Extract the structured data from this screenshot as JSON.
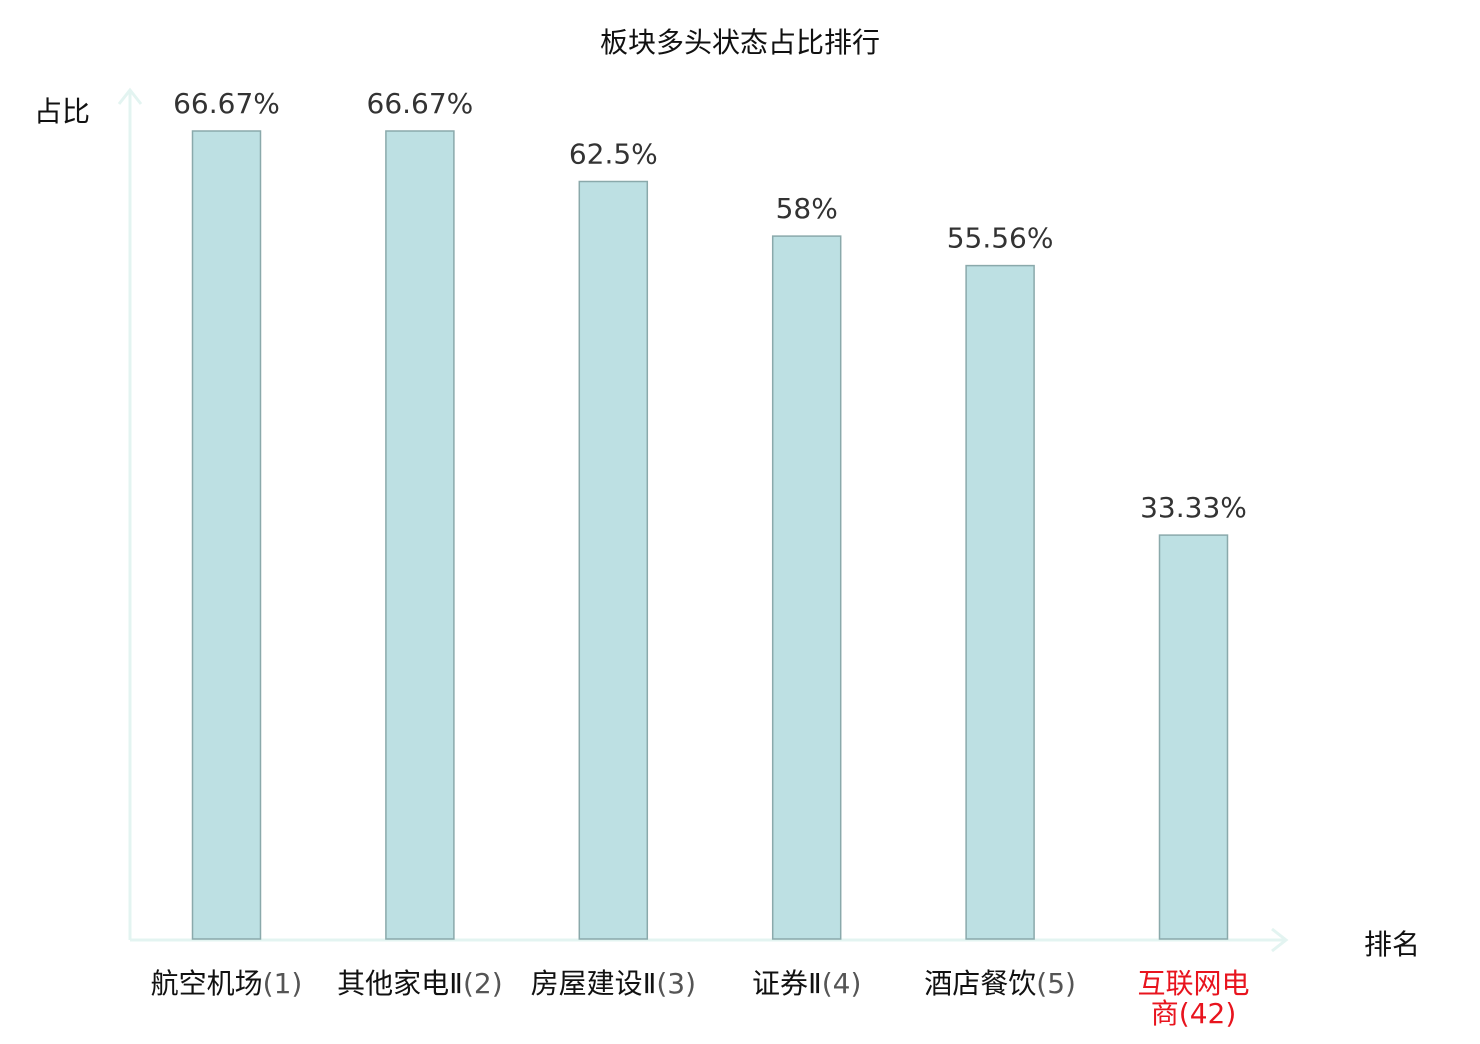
{
  "chart_data": {
    "type": "bar",
    "title": "板块多头状态占比排行",
    "ylabel": "占比",
    "xlabel": "排名",
    "categories": [
      {
        "name": "航空机场",
        "rank": "(1)"
      },
      {
        "name": "其他家电Ⅱ",
        "rank": "(2)"
      },
      {
        "name": "房屋建设Ⅱ",
        "rank": "(3)"
      },
      {
        "name": "证券Ⅱ",
        "rank": "(4)"
      },
      {
        "name": "酒店餐饮",
        "rank": "(5)"
      },
      {
        "name": "互联网电商",
        "rank": "(42)"
      }
    ],
    "values": [
      66.67,
      66.67,
      62.5,
      58,
      55.56,
      33.33
    ],
    "value_labels": [
      "66.67%",
      "66.67%",
      "62.5%",
      "58%",
      "55.56%",
      "33.33%"
    ],
    "highlight_index": 5,
    "ylim": [
      0,
      66.67
    ],
    "grid": false,
    "legend": "none",
    "colors": {
      "bar_fill": "#bde0e3",
      "bar_stroke": "#8aa9ab",
      "axis": "#e3f4f1",
      "text": "#333333",
      "label": "#111111",
      "highlight": "#e8141e"
    }
  }
}
